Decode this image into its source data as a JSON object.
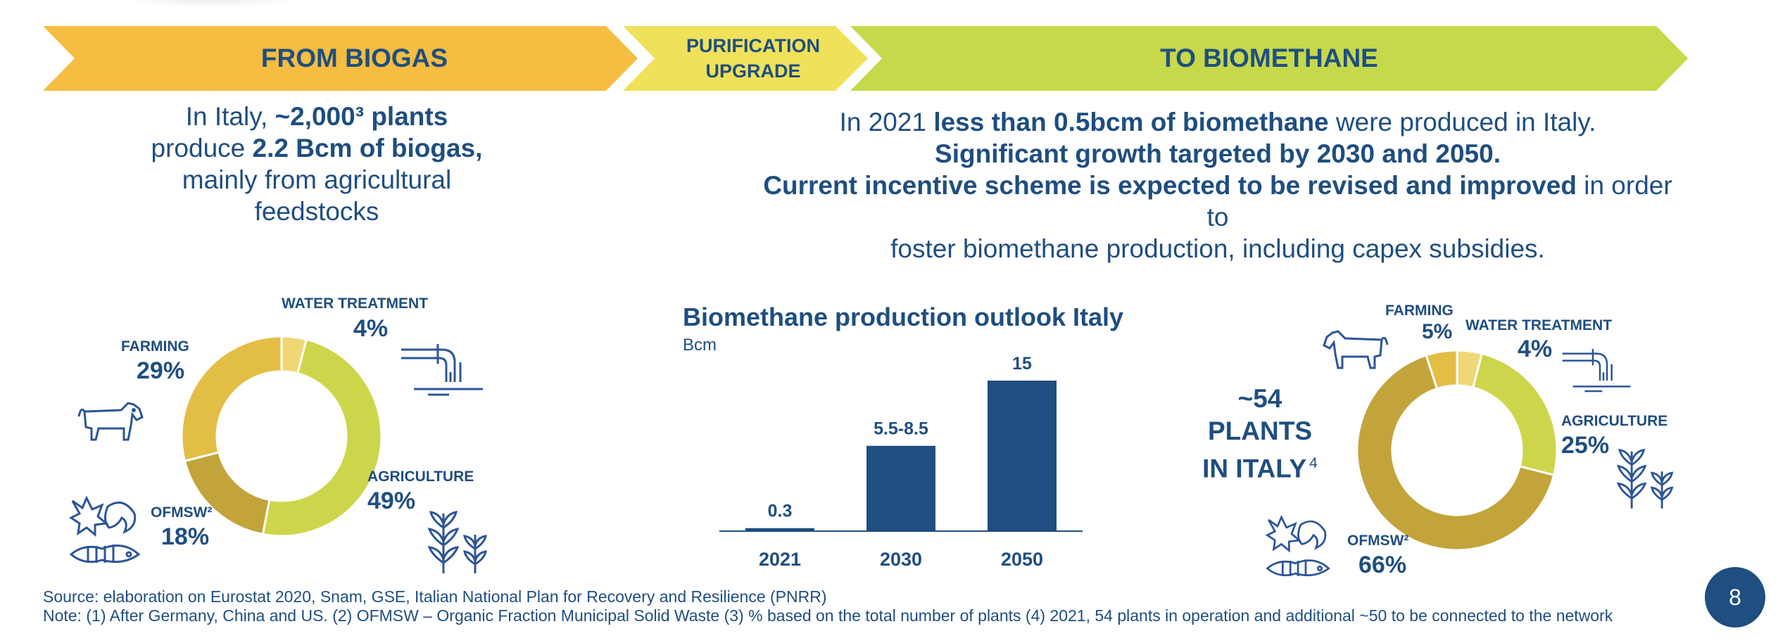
{
  "colors": {
    "navy": "#1f4e80",
    "orange": "#f5bd41",
    "yellow": "#efe15a",
    "green": "#c6d94a",
    "donut_farming": "#e2be45",
    "donut_water": "#f0d776",
    "donut_agriculture": "#cdd64a",
    "donut_ofmsw": "#c2a43b"
  },
  "header": {
    "from_biogas": "FROM BIOGAS",
    "purification_line1": "PURIFICATION",
    "purification_line2": "UPGRADE",
    "to_biomethane": "TO BIOMETHANE"
  },
  "left_text": {
    "l1a": "In Italy, ",
    "l1b": "~2,000³ plants",
    "l2a": "produce ",
    "l2b": "2.2 Bcm of biogas,",
    "l3": "mainly from agricultural",
    "l4": "feedstocks"
  },
  "right_text": {
    "l1a": "In 2021 ",
    "l1b": "less than 0.5bcm of biomethane",
    "l1c": " were produced in Italy.",
    "l2": "Significant growth targeted by 2030 and 2050.",
    "l3a": "Current incentive scheme is expected to be revised and improved",
    "l3b": " in order to",
    "l4": "foster biomethane production, including capex subsidies."
  },
  "plants_label": {
    "l1": "~54",
    "l2": "PLANTS",
    "l3": "IN ITALY",
    "sup": "4"
  },
  "icons": {
    "cow_left": "cow-icon",
    "cow_right": "cow-icon",
    "pipe_left": "water-pipe-icon",
    "pipe_right": "water-pipe-icon",
    "plant_left": "plant-sprout-icon",
    "plant_right": "plant-sprout-icon",
    "waste_left": "organic-waste-icon",
    "waste_right": "organic-waste-icon"
  },
  "chart_data": [
    {
      "type": "pie",
      "title": "",
      "labels": [
        "WATER TREATMENT",
        "AGRICULTURE",
        "OFMSW²",
        "FARMING"
      ],
      "values": [
        4,
        49,
        18,
        29
      ],
      "display": [
        "4%",
        "49%",
        "18%",
        "29%"
      ],
      "unit": "%"
    },
    {
      "type": "bar",
      "title": "Biomethane production outlook Italy",
      "ylabel": "Bcm",
      "categories": [
        "2021",
        "2030",
        "2050"
      ],
      "values": [
        0.3,
        8.5,
        15
      ],
      "data_labels": [
        "0.3",
        "5.5-8.5",
        "15"
      ],
      "ylim": [
        0,
        15
      ],
      "grid": false
    },
    {
      "type": "pie",
      "title": "",
      "labels": [
        "WATER TREATMENT",
        "AGRICULTURE",
        "OFMSW²",
        "FARMING"
      ],
      "values": [
        4,
        25,
        66,
        5
      ],
      "display": [
        "4%",
        "25%",
        "66%",
        "5%"
      ],
      "unit": "%"
    }
  ],
  "footer": {
    "source": "Source: elaboration on Eurostat 2020, Snam, GSE, Italian National Plan for Recovery and Resilience (PNRR)",
    "note": "Note: (1) After Germany, China and US. (2) OFMSW – Organic Fraction Municipal Solid Waste (3) % based on the total number of plants (4) 2021, 54 plants in operation and additional ~50 to be connected to the network"
  },
  "page_number": "8"
}
